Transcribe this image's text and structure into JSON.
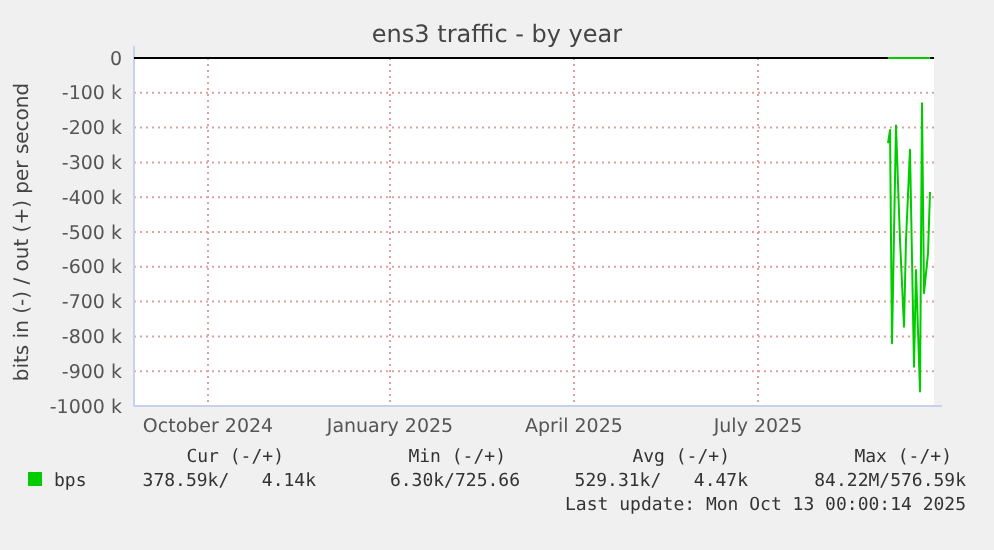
{
  "chart_data": {
    "type": "line",
    "title": "ens3 traffic - by year",
    "ylabel": "bits in (-) / out (+) per second",
    "xlim": [
      "2024-09-08",
      "2025-10-13"
    ],
    "xticks": [
      {
        "value": "2024-10-15",
        "label": "October 2024"
      },
      {
        "value": "2025-01-14",
        "label": "January 2025"
      },
      {
        "value": "2025-04-16",
        "label": "April 2025"
      },
      {
        "value": "2025-07-17",
        "label": "July 2025"
      }
    ],
    "ylim": [
      -1000,
      0
    ],
    "yticks": [
      {
        "value": 0,
        "label": "0"
      },
      {
        "value": -100,
        "label": "-100 k"
      },
      {
        "value": -200,
        "label": "-200 k"
      },
      {
        "value": -300,
        "label": "-300 k"
      },
      {
        "value": -400,
        "label": "-400 k"
      },
      {
        "value": -500,
        "label": "-500 k"
      },
      {
        "value": -600,
        "label": "-600 k"
      },
      {
        "value": -700,
        "label": "-700 k"
      },
      {
        "value": -800,
        "label": "-800 k"
      },
      {
        "value": -900,
        "label": "-900 k"
      },
      {
        "value": -1000,
        "label": "-1000 k"
      }
    ],
    "grid": true,
    "legend": "bottom",
    "marker": "none",
    "line_style": "solid",
    "series": [
      {
        "name": "bps",
        "color": "#00cc00",
        "x": [
          "2025-09-20",
          "2025-09-21",
          "2025-09-22",
          "2025-09-24",
          "2025-09-25",
          "2025-09-26",
          "2025-09-28",
          "2025-09-29",
          "2025-10-01",
          "2025-10-03",
          "2025-10-04",
          "2025-10-06",
          "2025-10-07",
          "2025-10-08",
          "2025-10-10",
          "2025-10-11"
        ],
        "values": [
          -245,
          -207,
          -820,
          -194,
          -360,
          -523,
          -772,
          -523,
          -264,
          -887,
          -609,
          -958,
          -130,
          -676,
          -561,
          -385
        ]
      },
      {
        "color": "#00cc00",
        "x": [
          "2025-09-20",
          "2025-09-24",
          "2025-09-28",
          "2025-10-02",
          "2025-10-06",
          "2025-10-11"
        ],
        "values": [
          0,
          0,
          0,
          0,
          0,
          0
        ]
      }
    ],
    "annotations": [
      "Cur (-/+)",
      "Min (-/+)",
      "Avg (-/+)",
      "Max (-/+)",
      "378.59k/   4.14k",
      "6.30k/725.66",
      "529.31k/   4.47k",
      "84.22M/576.59k",
      "Last update: Mon Oct 13 00:00:14 2025"
    ]
  }
}
